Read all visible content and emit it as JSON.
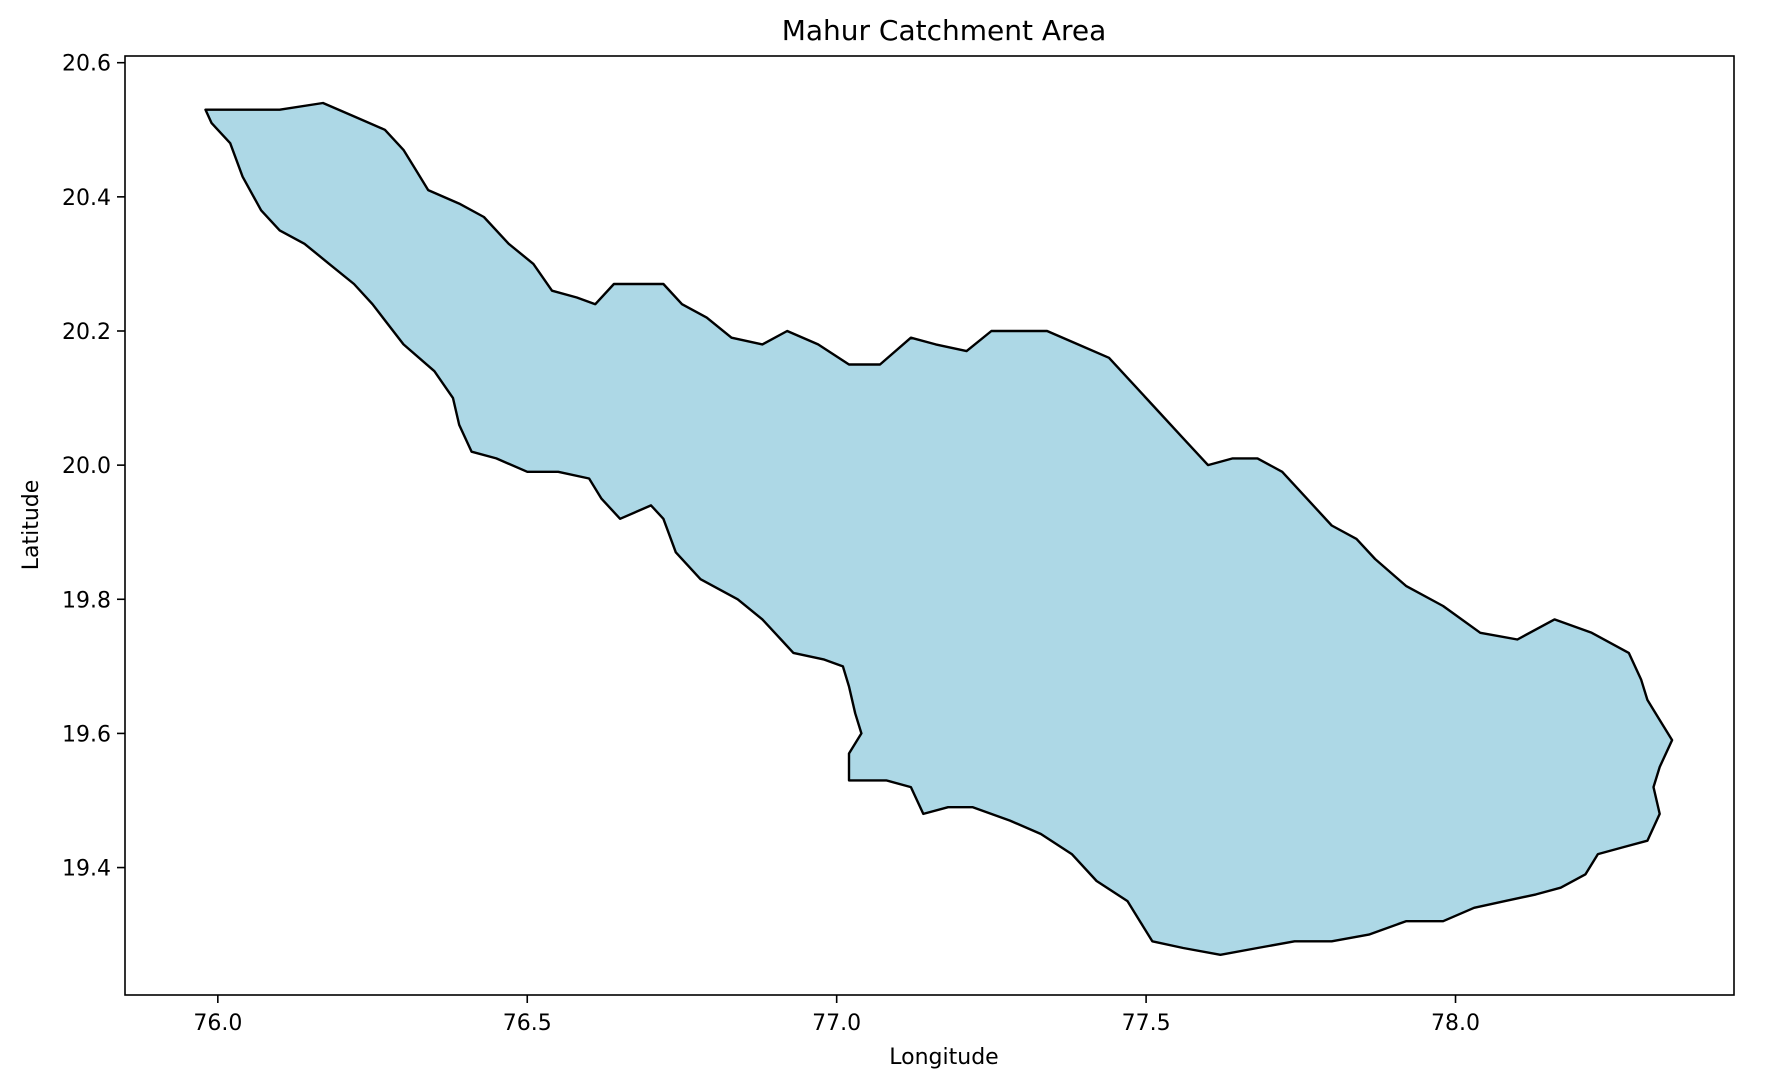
{
  "chart_data": {
    "type": "map",
    "title": "Mahur Catchment Area",
    "xlabel": "Longitude",
    "ylabel": "Latitude",
    "xlim": [
      75.85,
      78.45
    ],
    "ylim": [
      19.21,
      20.61
    ],
    "xticks": [
      76.0,
      76.5,
      77.0,
      77.5,
      78.0
    ],
    "yticks": [
      19.4,
      19.6,
      19.8,
      20.0,
      20.2,
      20.4,
      20.6
    ],
    "xtick_labels": [
      "76.0",
      "76.5",
      "77.0",
      "77.5",
      "78.0"
    ],
    "ytick_labels": [
      "19.4",
      "19.6",
      "19.8",
      "20.0",
      "20.2",
      "20.4",
      "20.6"
    ],
    "grid": false,
    "fill_color": "#add8e6",
    "edge_color": "#000000",
    "boundary": [
      [
        75.98,
        20.53
      ],
      [
        76.04,
        20.53
      ],
      [
        76.1,
        20.53
      ],
      [
        76.17,
        20.54
      ],
      [
        76.22,
        20.52
      ],
      [
        76.27,
        20.5
      ],
      [
        76.3,
        20.47
      ],
      [
        76.32,
        20.44
      ],
      [
        76.34,
        20.41
      ],
      [
        76.39,
        20.39
      ],
      [
        76.43,
        20.37
      ],
      [
        76.47,
        20.33
      ],
      [
        76.51,
        20.3
      ],
      [
        76.54,
        20.26
      ],
      [
        76.58,
        20.25
      ],
      [
        76.61,
        20.24
      ],
      [
        76.64,
        20.27
      ],
      [
        76.68,
        20.27
      ],
      [
        76.72,
        20.27
      ],
      [
        76.75,
        20.24
      ],
      [
        76.79,
        20.22
      ],
      [
        76.83,
        20.19
      ],
      [
        76.88,
        20.18
      ],
      [
        76.92,
        20.2
      ],
      [
        76.97,
        20.18
      ],
      [
        77.02,
        20.15
      ],
      [
        77.07,
        20.15
      ],
      [
        77.12,
        20.19
      ],
      [
        77.16,
        20.18
      ],
      [
        77.21,
        20.17
      ],
      [
        77.25,
        20.2
      ],
      [
        77.3,
        20.2
      ],
      [
        77.34,
        20.2
      ],
      [
        77.39,
        20.18
      ],
      [
        77.44,
        20.16
      ],
      [
        77.48,
        20.12
      ],
      [
        77.52,
        20.08
      ],
      [
        77.56,
        20.04
      ],
      [
        77.6,
        20.0
      ],
      [
        77.64,
        20.01
      ],
      [
        77.68,
        20.01
      ],
      [
        77.72,
        19.99
      ],
      [
        77.76,
        19.95
      ],
      [
        77.8,
        19.91
      ],
      [
        77.84,
        19.89
      ],
      [
        77.87,
        19.86
      ],
      [
        77.92,
        19.82
      ],
      [
        77.98,
        19.79
      ],
      [
        78.04,
        19.75
      ],
      [
        78.1,
        19.74
      ],
      [
        78.16,
        19.77
      ],
      [
        78.22,
        19.75
      ],
      [
        78.28,
        19.72
      ],
      [
        78.3,
        19.68
      ],
      [
        78.31,
        19.65
      ],
      [
        78.33,
        19.62
      ],
      [
        78.35,
        19.59
      ],
      [
        78.33,
        19.55
      ],
      [
        78.32,
        19.52
      ],
      [
        78.33,
        19.48
      ],
      [
        78.31,
        19.44
      ],
      [
        78.27,
        19.43
      ],
      [
        78.23,
        19.42
      ],
      [
        78.21,
        19.39
      ],
      [
        78.17,
        19.37
      ],
      [
        78.13,
        19.36
      ],
      [
        78.08,
        19.35
      ],
      [
        78.03,
        19.34
      ],
      [
        77.98,
        19.32
      ],
      [
        77.92,
        19.32
      ],
      [
        77.86,
        19.3
      ],
      [
        77.8,
        19.29
      ],
      [
        77.74,
        19.29
      ],
      [
        77.68,
        19.28
      ],
      [
        77.62,
        19.27
      ],
      [
        77.56,
        19.28
      ],
      [
        77.51,
        19.29
      ],
      [
        77.49,
        19.32
      ],
      [
        77.47,
        19.35
      ],
      [
        77.42,
        19.38
      ],
      [
        77.38,
        19.42
      ],
      [
        77.33,
        19.45
      ],
      [
        77.28,
        19.47
      ],
      [
        77.22,
        19.49
      ],
      [
        77.18,
        19.49
      ],
      [
        77.14,
        19.48
      ],
      [
        77.12,
        19.52
      ],
      [
        77.08,
        19.53
      ],
      [
        77.04,
        19.53
      ],
      [
        77.02,
        19.53
      ],
      [
        77.02,
        19.57
      ],
      [
        77.04,
        19.6
      ],
      [
        77.03,
        19.63
      ],
      [
        77.02,
        19.67
      ],
      [
        77.01,
        19.7
      ],
      [
        76.98,
        19.71
      ],
      [
        76.93,
        19.72
      ],
      [
        76.91,
        19.74
      ],
      [
        76.88,
        19.77
      ],
      [
        76.84,
        19.8
      ],
      [
        76.78,
        19.83
      ],
      [
        76.74,
        19.87
      ],
      [
        76.72,
        19.92
      ],
      [
        76.7,
        19.94
      ],
      [
        76.65,
        19.92
      ],
      [
        76.62,
        19.95
      ],
      [
        76.6,
        19.98
      ],
      [
        76.55,
        19.99
      ],
      [
        76.5,
        19.99
      ],
      [
        76.45,
        20.01
      ],
      [
        76.41,
        20.02
      ],
      [
        76.39,
        20.06
      ],
      [
        76.38,
        20.1
      ],
      [
        76.35,
        20.14
      ],
      [
        76.3,
        20.18
      ],
      [
        76.25,
        20.24
      ],
      [
        76.22,
        20.27
      ],
      [
        76.18,
        20.3
      ],
      [
        76.14,
        20.33
      ],
      [
        76.1,
        20.35
      ],
      [
        76.07,
        20.38
      ],
      [
        76.04,
        20.43
      ],
      [
        76.02,
        20.48
      ],
      [
        75.99,
        20.51
      ],
      [
        75.98,
        20.53
      ]
    ]
  }
}
